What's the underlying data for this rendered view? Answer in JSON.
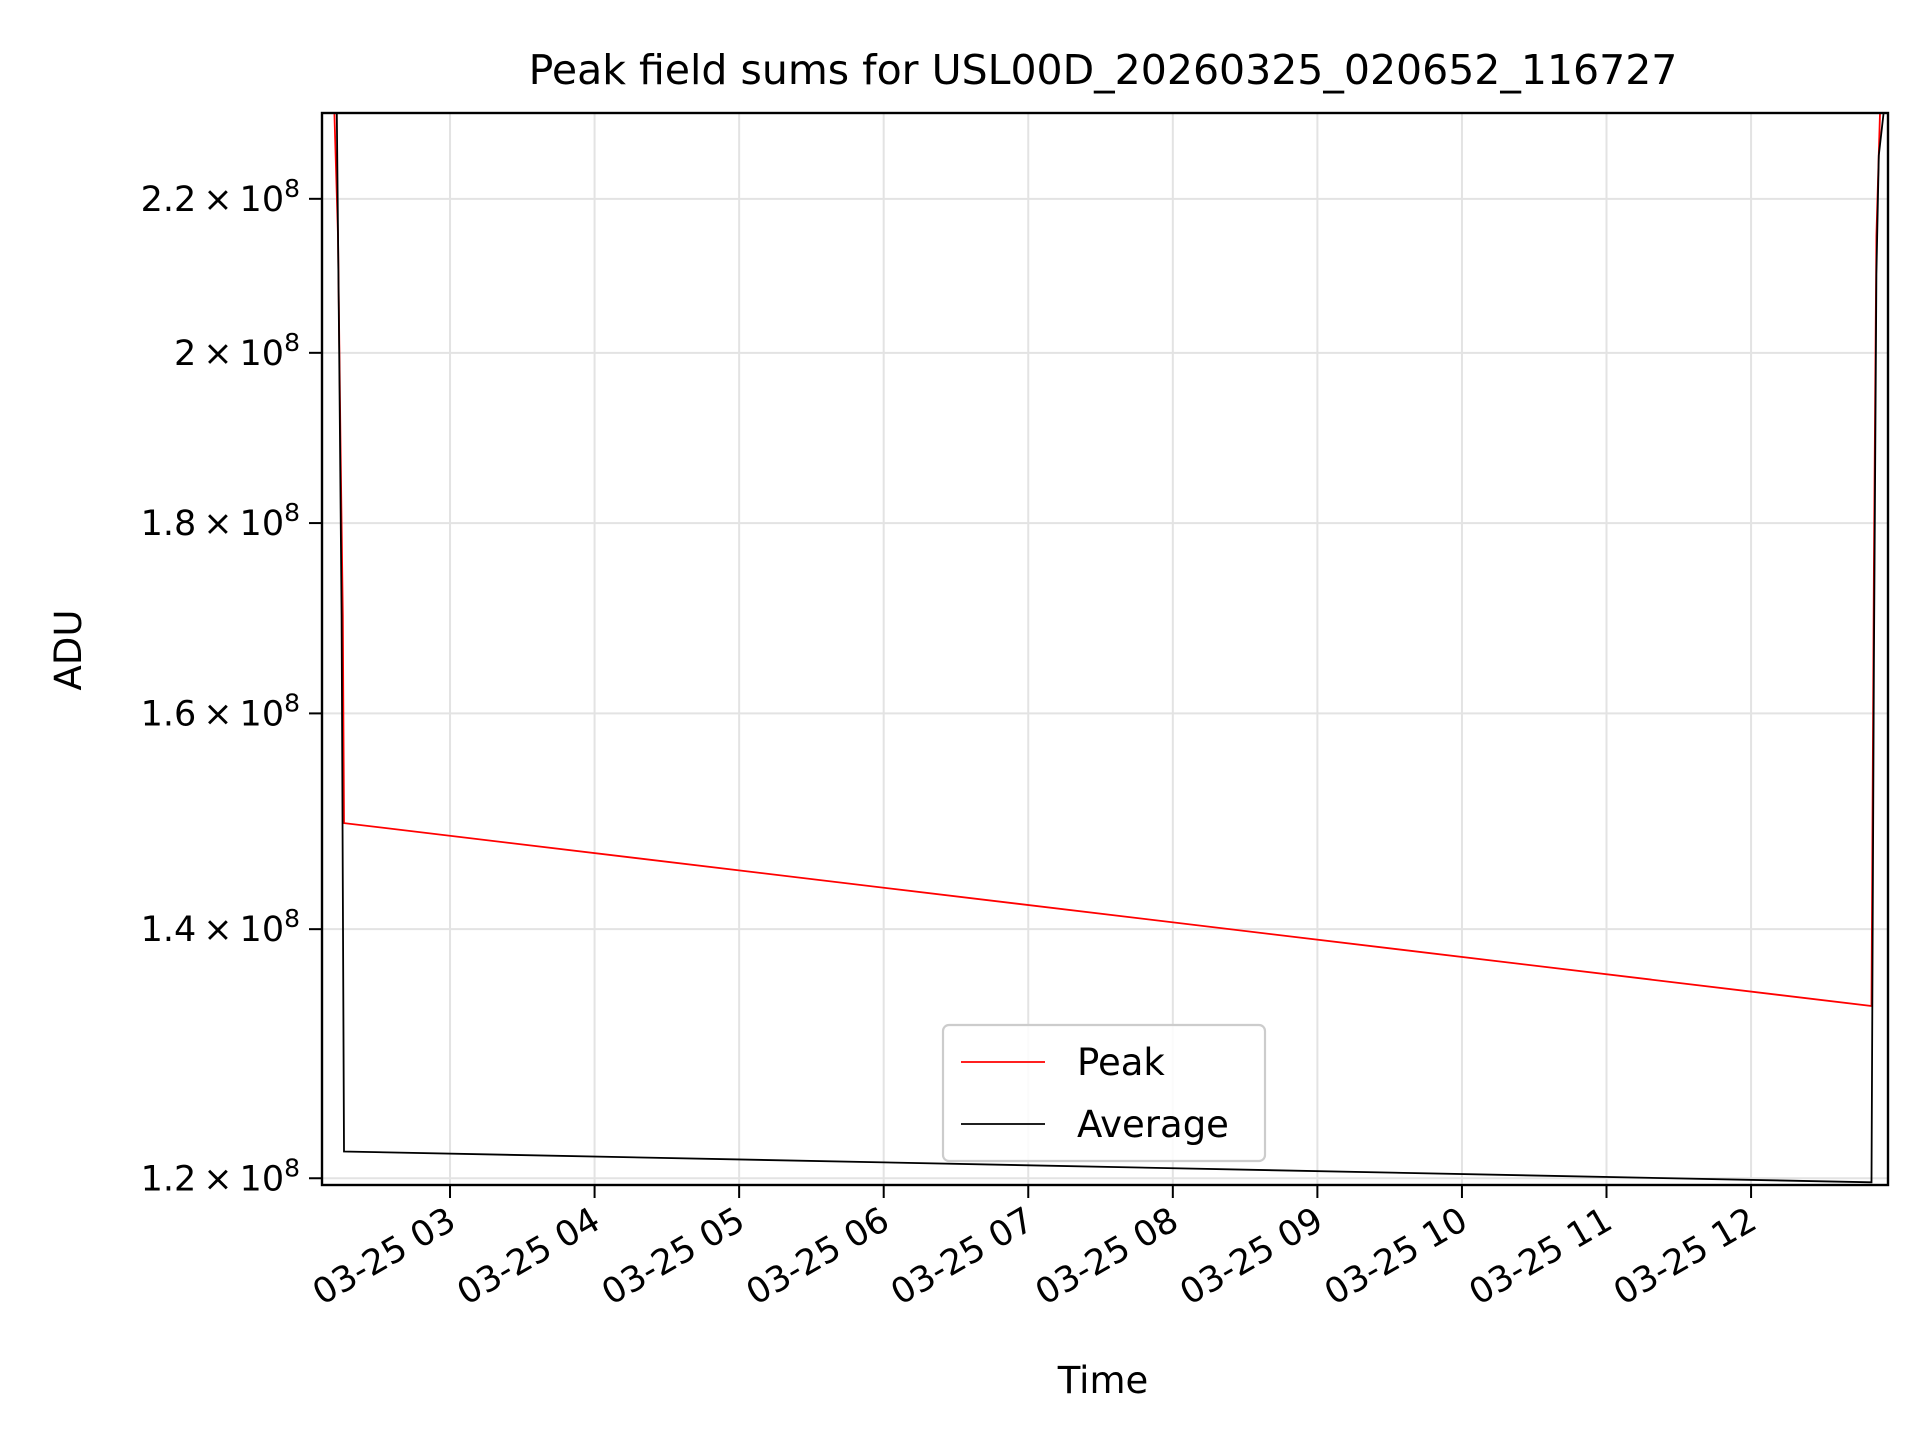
{
  "chart_data": {
    "type": "line",
    "title": "Peak field sums for USL00D_20260325_020652_116727",
    "xlabel": "Time",
    "ylabel": "ADU",
    "y_scale": "log",
    "xlim": [
      "2026-03-25T02:06:52",
      "2026-03-25T12:56:50"
    ],
    "ylim": [
      119500000,
      232000000
    ],
    "x_ticks": [
      "2026-03-25T03:00",
      "2026-03-25T04:00",
      "2026-03-25T05:00",
      "2026-03-25T06:00",
      "2026-03-25T07:00",
      "2026-03-25T08:00",
      "2026-03-25T09:00",
      "2026-03-25T10:00",
      "2026-03-25T11:00",
      "2026-03-25T12:00"
    ],
    "x_tick_labels": [
      "03-25 03",
      "03-25 04",
      "03-25 05",
      "03-25 06",
      "03-25 07",
      "03-25 08",
      "03-25 09",
      "03-25 10",
      "03-25 11",
      "03-25 12"
    ],
    "y_ticks": [
      {
        "value": 120000000,
        "mantissa": "1.2",
        "base": "10",
        "exponent": "8"
      },
      {
        "value": 140000000,
        "mantissa": "1.4",
        "base": "10",
        "exponent": "8"
      },
      {
        "value": 160000000,
        "mantissa": "1.6",
        "base": "10",
        "exponent": "8"
      },
      {
        "value": 180000000,
        "mantissa": "1.8",
        "base": "10",
        "exponent": "8"
      },
      {
        "value": 200000000,
        "mantissa": "2",
        "base": "10",
        "exponent": "8"
      },
      {
        "value": 220000000,
        "mantissa": "2.2",
        "base": "10",
        "exponent": "8"
      }
    ],
    "grid": true,
    "legend_position": "lower center",
    "series": [
      {
        "name": "Peak",
        "color": "#ff0000",
        "points": [
          {
            "x": "2026-03-25T02:12:00",
            "y": 232000000
          },
          {
            "x": "2026-03-25T02:13:30",
            "y": 215000000
          },
          {
            "x": "2026-03-25T02:14:30",
            "y": 190000000
          },
          {
            "x": "2026-03-25T02:15:30",
            "y": 170000000
          },
          {
            "x": "2026-03-25T02:16:00",
            "y": 149500000
          },
          {
            "x": "2026-03-25T12:50:00",
            "y": 133500000
          },
          {
            "x": "2026-03-25T12:51:00",
            "y": 175000000
          },
          {
            "x": "2026-03-25T12:52:00",
            "y": 215000000
          },
          {
            "x": "2026-03-25T12:53:30",
            "y": 232000000
          }
        ]
      },
      {
        "name": "Average",
        "color": "#000000",
        "points": [
          {
            "x": "2026-03-25T02:13:00",
            "y": 232000000
          },
          {
            "x": "2026-03-25T02:14:00",
            "y": 200000000
          },
          {
            "x": "2026-03-25T02:15:00",
            "y": 170000000
          },
          {
            "x": "2026-03-25T02:16:00",
            "y": 122000000
          },
          {
            "x": "2026-03-25T12:50:00",
            "y": 119700000
          },
          {
            "x": "2026-03-25T12:51:00",
            "y": 165000000
          },
          {
            "x": "2026-03-25T12:52:00",
            "y": 210000000
          },
          {
            "x": "2026-03-25T12:53:00",
            "y": 226000000
          },
          {
            "x": "2026-03-25T12:55:00",
            "y": 232000000
          }
        ]
      }
    ]
  }
}
